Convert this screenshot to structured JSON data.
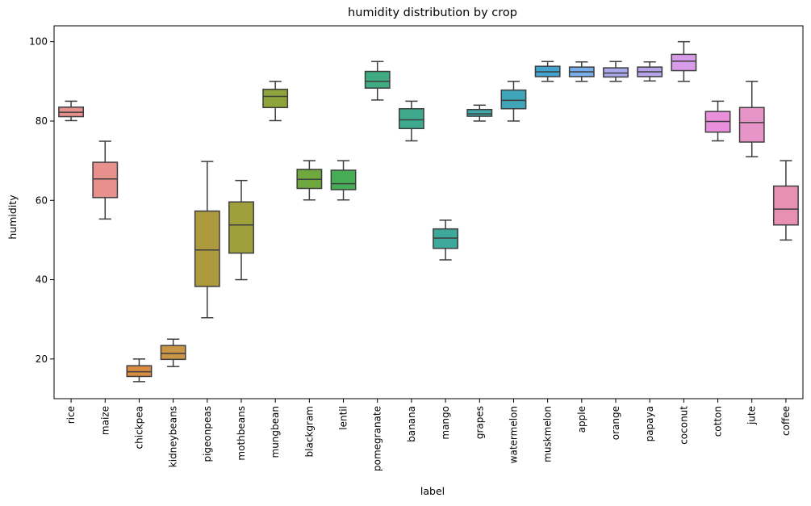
{
  "chart_data": {
    "type": "box",
    "title": "humidity distribution by crop",
    "xlabel": "label",
    "ylabel": "humidity",
    "ylim": [
      10,
      104
    ],
    "yticks": [
      20,
      40,
      60,
      80,
      100
    ],
    "grid": false,
    "legend": "none",
    "categories": [
      "rice",
      "maize",
      "chickpea",
      "kidneybeans",
      "pigeonpeas",
      "mothbeans",
      "mungbean",
      "blackgram",
      "lentil",
      "pomegranate",
      "banana",
      "mango",
      "grapes",
      "watermelon",
      "muskmelon",
      "apple",
      "orange",
      "papaya",
      "coconut",
      "cotton",
      "jute",
      "coffee"
    ],
    "colors": [
      "#e8918c",
      "#e8918c",
      "#d98c43",
      "#c99546",
      "#ad9a3f",
      "#9ea13b",
      "#8ea33c",
      "#6fa83f",
      "#46ac55",
      "#3fab82",
      "#3fa98e",
      "#3ea89a",
      "#3fa7a8",
      "#40a5b9",
      "#44a4d0",
      "#78aeea",
      "#a8aaeb",
      "#b7a3ea",
      "#d89be9",
      "#ea90da",
      "#e795c9",
      "#e790b2"
    ],
    "boxes": [
      {
        "min": 80.1,
        "q1": 81.1,
        "median": 82.2,
        "q3": 83.5,
        "max": 85.0
      },
      {
        "min": 55.3,
        "q1": 60.7,
        "median": 65.4,
        "q3": 69.6,
        "max": 74.9
      },
      {
        "min": 14.3,
        "q1": 15.6,
        "median": 16.8,
        "q3": 18.3,
        "max": 20.0
      },
      {
        "min": 18.1,
        "q1": 19.9,
        "median": 21.4,
        "q3": 23.4,
        "max": 25.0
      },
      {
        "min": 30.4,
        "q1": 38.3,
        "median": 47.5,
        "q3": 57.3,
        "max": 69.8
      },
      {
        "min": 40.0,
        "q1": 46.7,
        "median": 53.8,
        "q3": 59.6,
        "max": 65.0
      },
      {
        "min": 80.1,
        "q1": 83.4,
        "median": 86.2,
        "q3": 88.0,
        "max": 90.0
      },
      {
        "min": 60.1,
        "q1": 63.0,
        "median": 65.3,
        "q3": 67.8,
        "max": 70.0
      },
      {
        "min": 60.1,
        "q1": 62.7,
        "median": 64.2,
        "q3": 67.6,
        "max": 70.0
      },
      {
        "min": 85.3,
        "q1": 88.3,
        "median": 90.0,
        "q3": 92.5,
        "max": 95.0
      },
      {
        "min": 75.0,
        "q1": 78.1,
        "median": 80.3,
        "q3": 83.1,
        "max": 85.0
      },
      {
        "min": 45.0,
        "q1": 47.9,
        "median": 50.5,
        "q3": 52.8,
        "max": 55.0
      },
      {
        "min": 80.0,
        "q1": 81.2,
        "median": 81.8,
        "q3": 82.9,
        "max": 84.0
      },
      {
        "min": 80.0,
        "q1": 83.1,
        "median": 85.2,
        "q3": 87.8,
        "max": 90.0
      },
      {
        "min": 90.0,
        "q1": 91.2,
        "median": 92.4,
        "q3": 93.8,
        "max": 95.0
      },
      {
        "min": 90.0,
        "q1": 91.2,
        "median": 92.4,
        "q3": 93.6,
        "max": 94.9
      },
      {
        "min": 90.0,
        "q1": 91.1,
        "median": 92.1,
        "q3": 93.4,
        "max": 95.0
      },
      {
        "min": 90.1,
        "q1": 91.2,
        "median": 92.4,
        "q3": 93.6,
        "max": 94.9
      },
      {
        "min": 90.0,
        "q1": 92.7,
        "median": 95.1,
        "q3": 96.8,
        "max": 100.0
      },
      {
        "min": 75.0,
        "q1": 77.2,
        "median": 79.9,
        "q3": 82.4,
        "max": 85.0
      },
      {
        "min": 71.0,
        "q1": 74.7,
        "median": 79.6,
        "q3": 83.4,
        "max": 90.0
      },
      {
        "min": 50.0,
        "q1": 53.8,
        "median": 57.8,
        "q3": 63.6,
        "max": 70.0
      }
    ]
  }
}
